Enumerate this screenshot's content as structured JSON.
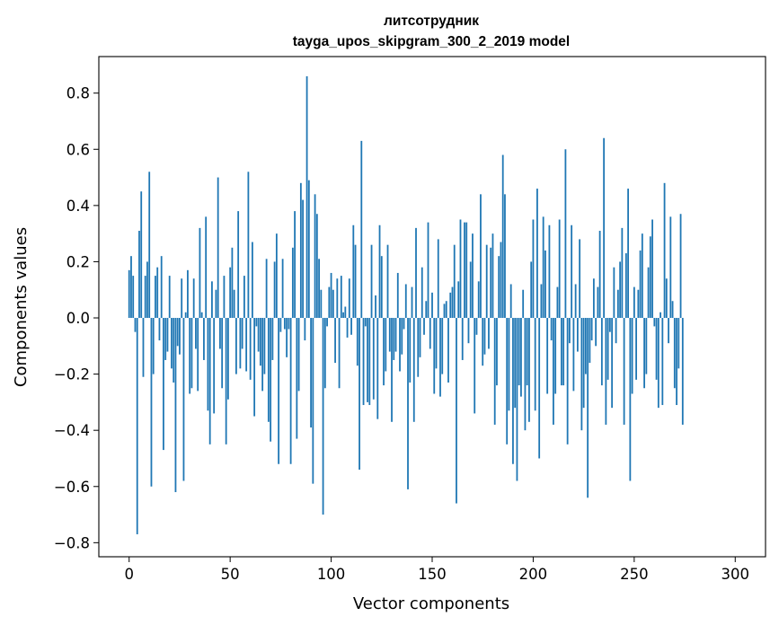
{
  "chart_data": {
    "type": "bar",
    "title_line1": "литсотрудник",
    "title_line2": "tayga_upos_skipgram_300_2_2019 model",
    "xlabel": "Vector components",
    "ylabel": "Components values",
    "xlim": [
      -15,
      315
    ],
    "ylim": [
      -0.85,
      0.93
    ],
    "xticks": [
      0,
      50,
      100,
      150,
      200,
      250,
      300
    ],
    "xtick_labels": [
      "0",
      "50",
      "100",
      "150",
      "200",
      "250",
      "300"
    ],
    "yticks": [
      -0.8,
      -0.6,
      -0.4,
      -0.2,
      0.0,
      0.2,
      0.4,
      0.6,
      0.8
    ],
    "ytick_labels": [
      "−0.8",
      "−0.6",
      "−0.4",
      "−0.2",
      "0.0",
      "0.2",
      "0.4",
      "0.6",
      "0.8"
    ],
    "bar_color": "#1f77b4",
    "grid": false,
    "values": [
      0.17,
      0.22,
      0.15,
      -0.05,
      -0.77,
      0.31,
      0.45,
      -0.21,
      0.15,
      0.2,
      0.52,
      -0.6,
      -0.2,
      0.15,
      0.18,
      -0.08,
      0.22,
      -0.47,
      -0.15,
      -0.12,
      0.15,
      -0.18,
      -0.23,
      -0.62,
      -0.1,
      -0.13,
      0.14,
      -0.58,
      0.02,
      0.17,
      -0.27,
      -0.25,
      0.14,
      -0.11,
      -0.26,
      0.32,
      0.02,
      -0.15,
      0.36,
      -0.33,
      -0.45,
      0.13,
      -0.34,
      0.1,
      0.5,
      -0.11,
      -0.25,
      0.15,
      -0.45,
      -0.29,
      0.18,
      0.25,
      0.1,
      -0.2,
      0.38,
      -0.18,
      -0.11,
      0.15,
      -0.19,
      0.52,
      -0.22,
      0.27,
      -0.35,
      -0.03,
      -0.12,
      -0.17,
      -0.26,
      -0.2,
      0.21,
      -0.37,
      -0.44,
      -0.15,
      0.2,
      0.3,
      -0.52,
      -0.05,
      0.21,
      -0.04,
      -0.14,
      -0.04,
      -0.52,
      0.25,
      0.38,
      -0.43,
      -0.26,
      0.48,
      0.42,
      -0.08,
      0.86,
      0.49,
      -0.39,
      -0.59,
      0.44,
      0.37,
      0.21,
      0.1,
      -0.7,
      -0.25,
      -0.03,
      0.11,
      0.16,
      0.1,
      -0.16,
      0.14,
      -0.25,
      0.15,
      0.02,
      0.04,
      -0.07,
      0.14,
      -0.06,
      0.33,
      0.26,
      -0.17,
      -0.54,
      0.63,
      -0.31,
      -0.03,
      -0.3,
      -0.31,
      0.26,
      -0.29,
      0.08,
      -0.36,
      0.33,
      0.22,
      -0.24,
      -0.19,
      0.26,
      -0.12,
      -0.37,
      -0.15,
      -0.12,
      0.16,
      -0.19,
      -0.13,
      -0.04,
      0.12,
      -0.61,
      -0.23,
      0.11,
      -0.37,
      0.32,
      -0.21,
      -0.14,
      0.18,
      -0.06,
      0.06,
      0.34,
      -0.11,
      0.09,
      -0.27,
      -0.18,
      0.28,
      -0.28,
      -0.2,
      0.05,
      0.06,
      -0.23,
      0.09,
      0.11,
      0.26,
      -0.66,
      0.13,
      0.35,
      -0.15,
      0.34,
      0.34,
      -0.09,
      0.2,
      0.3,
      -0.34,
      -0.06,
      0.13,
      0.44,
      -0.17,
      -0.13,
      0.26,
      -0.11,
      0.25,
      0.3,
      -0.38,
      -0.24,
      0.22,
      0.27,
      0.58,
      0.44,
      -0.45,
      -0.33,
      0.12,
      -0.52,
      -0.32,
      -0.58,
      -0.24,
      -0.28,
      0.1,
      -0.4,
      -0.24,
      -0.37,
      0.2,
      0.35,
      -0.33,
      0.46,
      -0.5,
      0.12,
      0.36,
      0.24,
      -0.27,
      0.33,
      -0.08,
      -0.38,
      -0.27,
      0.11,
      0.35,
      -0.24,
      -0.24,
      0.6,
      -0.45,
      -0.09,
      0.33,
      -0.26,
      0.12,
      -0.12,
      0.28,
      -0.4,
      -0.32,
      -0.2,
      -0.64,
      -0.16,
      -0.08,
      0.14,
      -0.1,
      0.11,
      0.31,
      -0.24,
      0.64,
      -0.38,
      -0.22,
      -0.05,
      -0.32,
      0.18,
      -0.09,
      0.1,
      0.2,
      0.32,
      -0.38,
      0.23,
      0.46,
      -0.58,
      -0.27,
      0.11,
      -0.22,
      0.1,
      0.24,
      0.3,
      -0.25,
      -0.2,
      0.18,
      0.29,
      0.35,
      -0.03,
      -0.22,
      -0.32,
      0.02,
      -0.31,
      0.48,
      0.14,
      -0.09,
      0.36,
      0.06,
      -0.25,
      -0.31,
      -0.18,
      0.37,
      -0.38
    ]
  }
}
